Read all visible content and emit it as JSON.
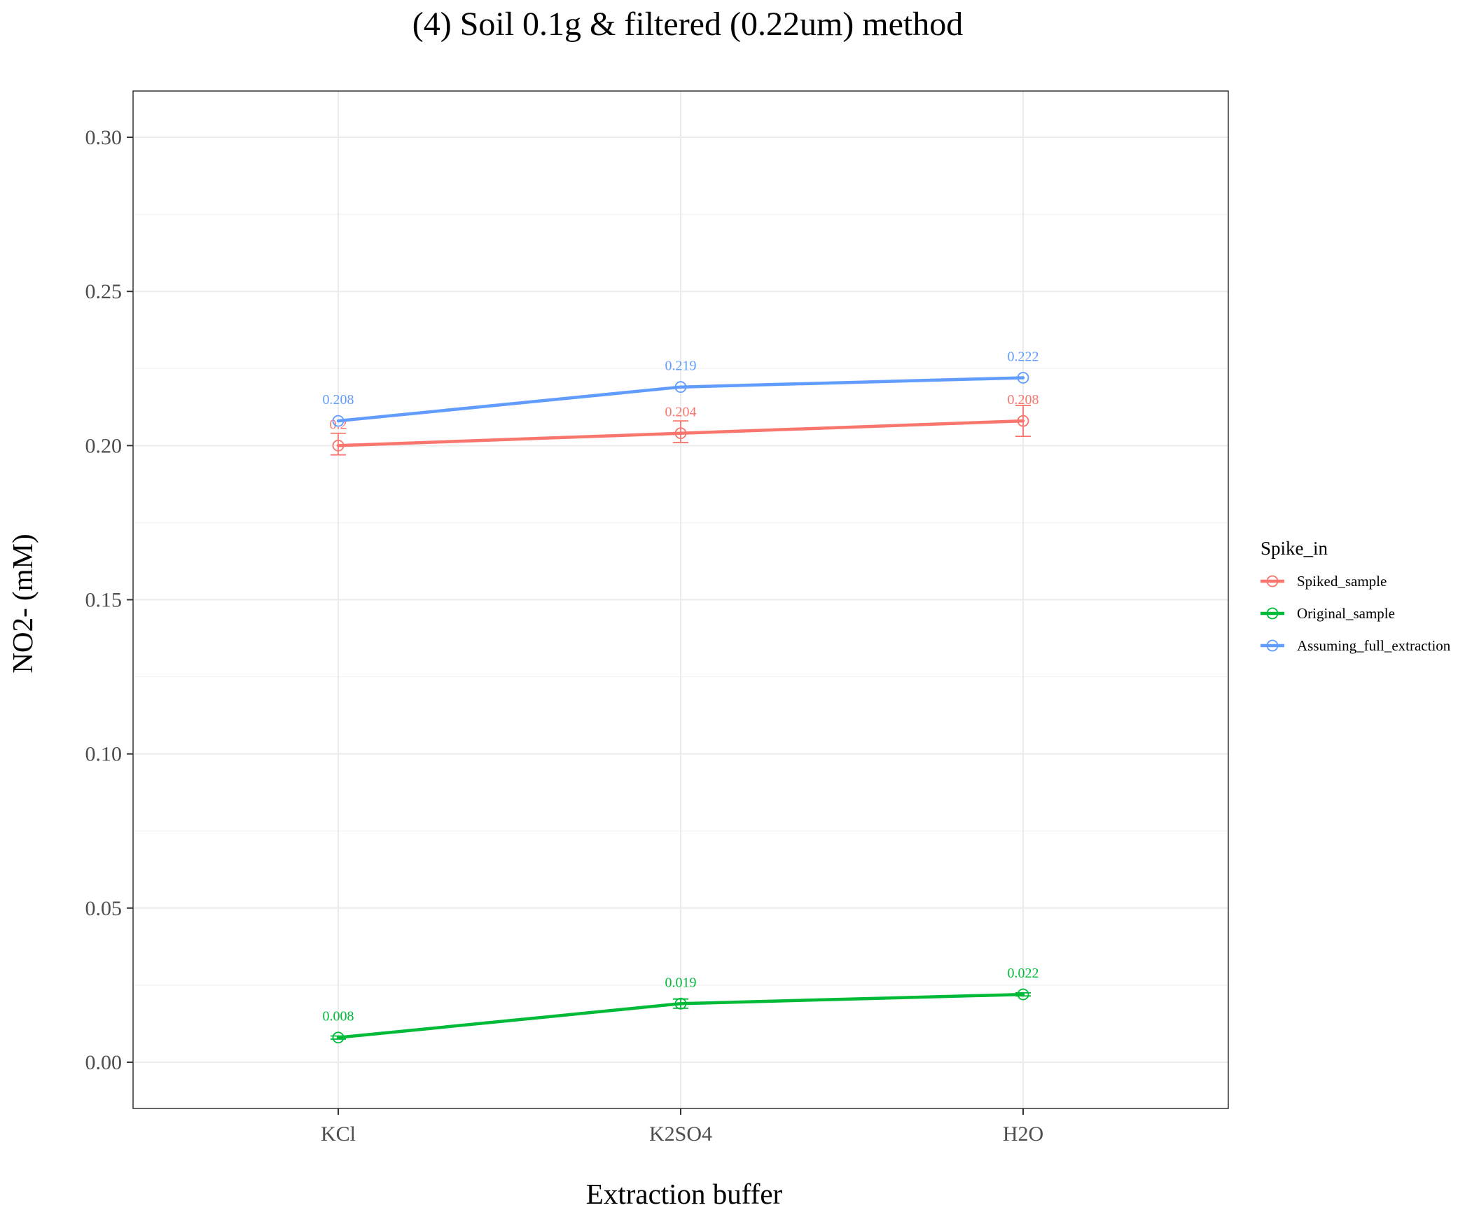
{
  "chart_data": {
    "type": "line",
    "title": "(4) Soil 0.1g & filtered (0.22um) method",
    "xlabel": "Extraction buffer",
    "ylabel": "NO2- (mM)",
    "categories": [
      "KCl",
      "K2SO4",
      "H2O"
    ],
    "ylim": [
      -0.015,
      0.315
    ],
    "yticks": [
      0,
      0.05,
      0.1,
      0.15,
      0.2,
      0.25,
      0.3
    ],
    "ytick_labels": [
      "0.00",
      "0.05",
      "0.10",
      "0.15",
      "0.20",
      "0.25",
      "0.30"
    ],
    "grid": true,
    "legend": {
      "title": "Spike_in",
      "placement": "right"
    },
    "series": [
      {
        "name": "Spiked_sample",
        "color": "#F8766D",
        "values": [
          0.2,
          0.204,
          0.208
        ],
        "labels": [
          "0.2",
          "0.204",
          "0.208"
        ],
        "error_low": [
          0.197,
          0.201,
          0.203
        ],
        "error_high": [
          0.204,
          0.208,
          0.213
        ]
      },
      {
        "name": "Original_sample",
        "color": "#00BA38",
        "values": [
          0.008,
          0.019,
          0.022
        ],
        "labels": [
          "0.008",
          "0.019",
          "0.022"
        ],
        "error_low": [
          0.0075,
          0.0175,
          0.0215
        ],
        "error_high": [
          0.0085,
          0.0205,
          0.0225
        ]
      },
      {
        "name": "Assuming_full_extraction",
        "color": "#619CFF",
        "values": [
          0.208,
          0.219,
          0.222
        ],
        "labels": [
          "0.208",
          "0.219",
          "0.222"
        ],
        "error_low": null,
        "error_high": null
      }
    ]
  }
}
